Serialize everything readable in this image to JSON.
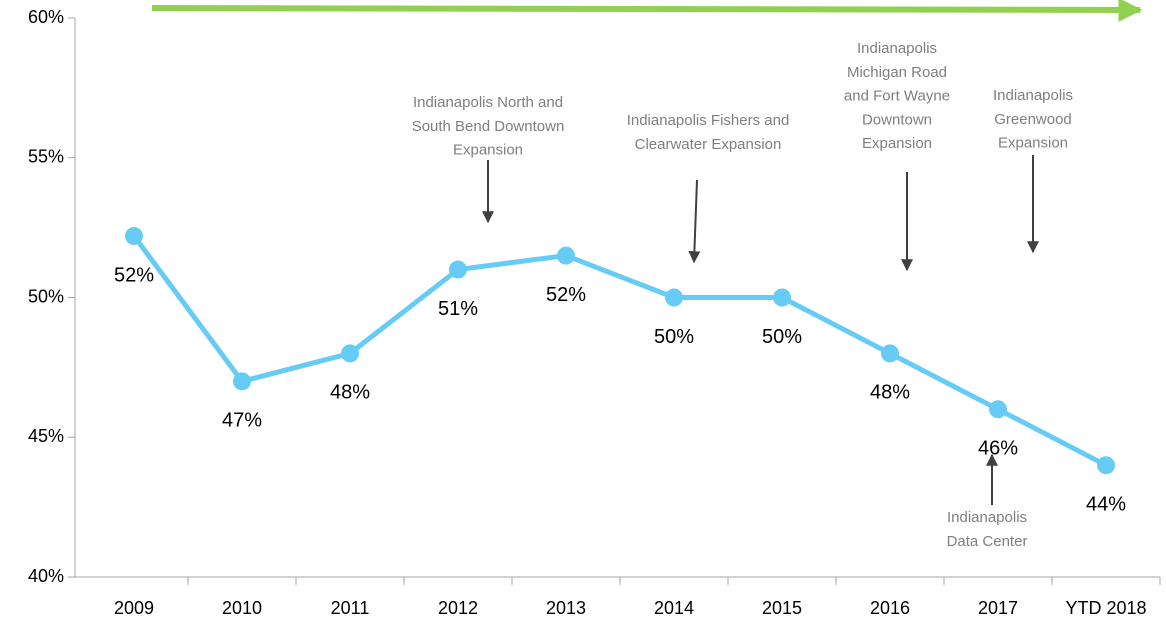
{
  "chart_data": {
    "type": "line",
    "categories": [
      "2009",
      "2010",
      "2011",
      "2012",
      "2013",
      "2014",
      "2015",
      "2016",
      "2017",
      "YTD 2018"
    ],
    "series": [
      {
        "color": "#66ccf6",
        "values": [
          52.2,
          47,
          48,
          51,
          51.5,
          50,
          50,
          48,
          46,
          44
        ],
        "value_labels": [
          "52%",
          "47%",
          "48%",
          "51%",
          "52%",
          "50%",
          "50%",
          "48%",
          "46%",
          "44%"
        ]
      }
    ],
    "ylim": [
      40,
      60
    ],
    "yticks": [
      {
        "value": 40,
        "label": "40%"
      },
      {
        "value": 45,
        "label": "45%"
      },
      {
        "value": 50,
        "label": "50%"
      },
      {
        "value": 55,
        "label": "55%"
      },
      {
        "value": 60,
        "label": "60%"
      }
    ],
    "annotations": [
      {
        "lines": [
          "Indianapolis North and",
          "South Bend Downtown",
          "Expansion"
        ]
      },
      {
        "lines": [
          "Indianapolis Fishers and",
          "Clearwater Expansion"
        ]
      },
      {
        "lines": [
          "Indianapolis",
          "Michigan Road",
          "and Fort Wayne",
          "Downtown",
          "Expansion"
        ]
      },
      {
        "lines": [
          "Indianapolis",
          "Greenwood",
          "Expansion"
        ]
      },
      {
        "lines": [
          "Indianapolis",
          "Data Center"
        ]
      }
    ]
  }
}
